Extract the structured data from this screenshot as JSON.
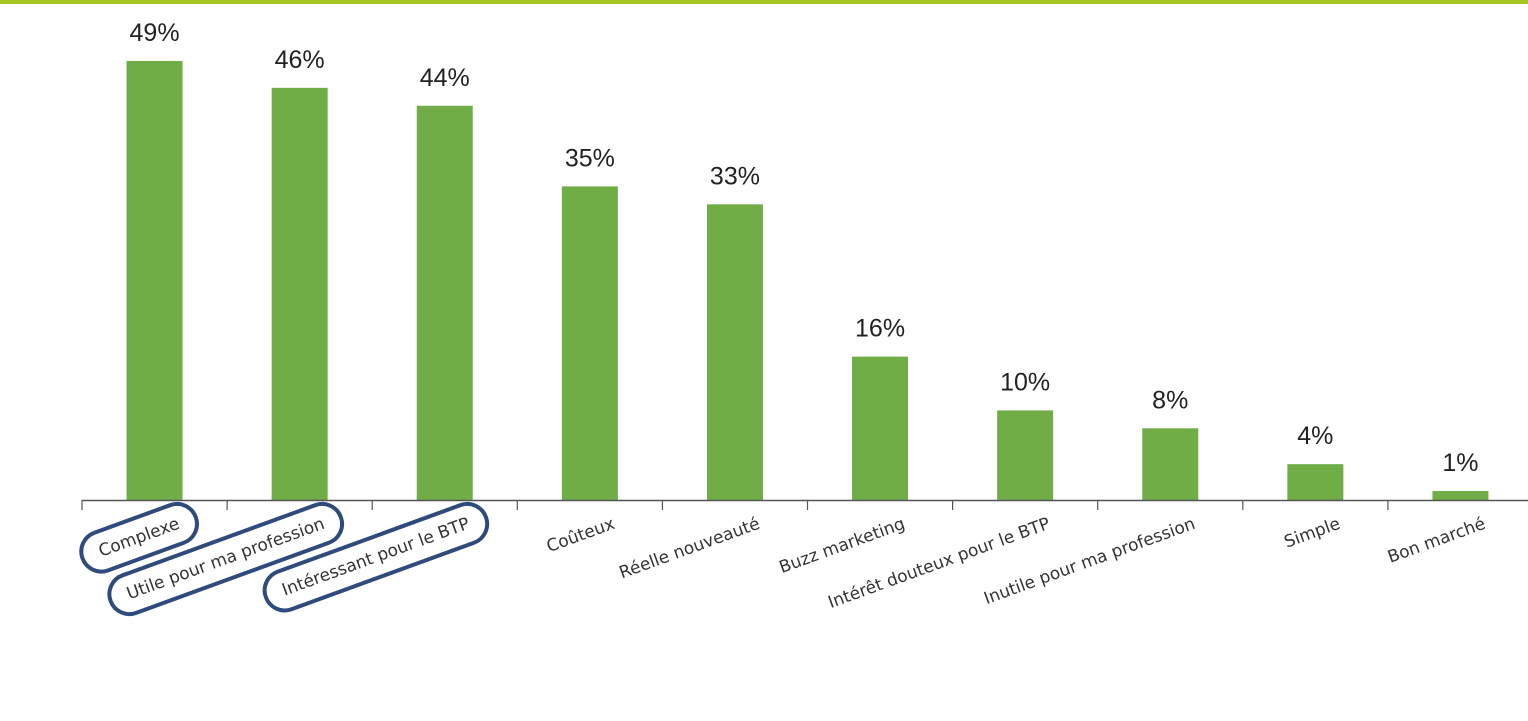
{
  "colors": {
    "bar": "#70ad47",
    "top_rule": "#a4c424",
    "axis": "#555555",
    "highlight_outline": "#2f4b7c"
  },
  "chart_data": {
    "type": "bar",
    "title": "",
    "xlabel": "",
    "ylabel": "",
    "ylim": [
      0,
      50
    ],
    "grid": false,
    "categories": [
      "Complexe",
      "Utile pour ma profession",
      "Intéressant pour le BTP",
      "Coûteux",
      "Réelle nouveauté",
      "Buzz marketing",
      "Intérêt douteux pour le BTP",
      "Inutile pour ma profession",
      "Simple",
      "Bon marché"
    ],
    "values": [
      49,
      46,
      44,
      35,
      33,
      16,
      10,
      8,
      4,
      1
    ],
    "value_labels": [
      "49%",
      "46%",
      "44%",
      "35%",
      "33%",
      "16%",
      "10%",
      "8%",
      "4%",
      "1%"
    ],
    "highlighted_categories": [
      "Complexe",
      "Utile pour ma profession",
      "Intéressant pour le BTP"
    ]
  }
}
